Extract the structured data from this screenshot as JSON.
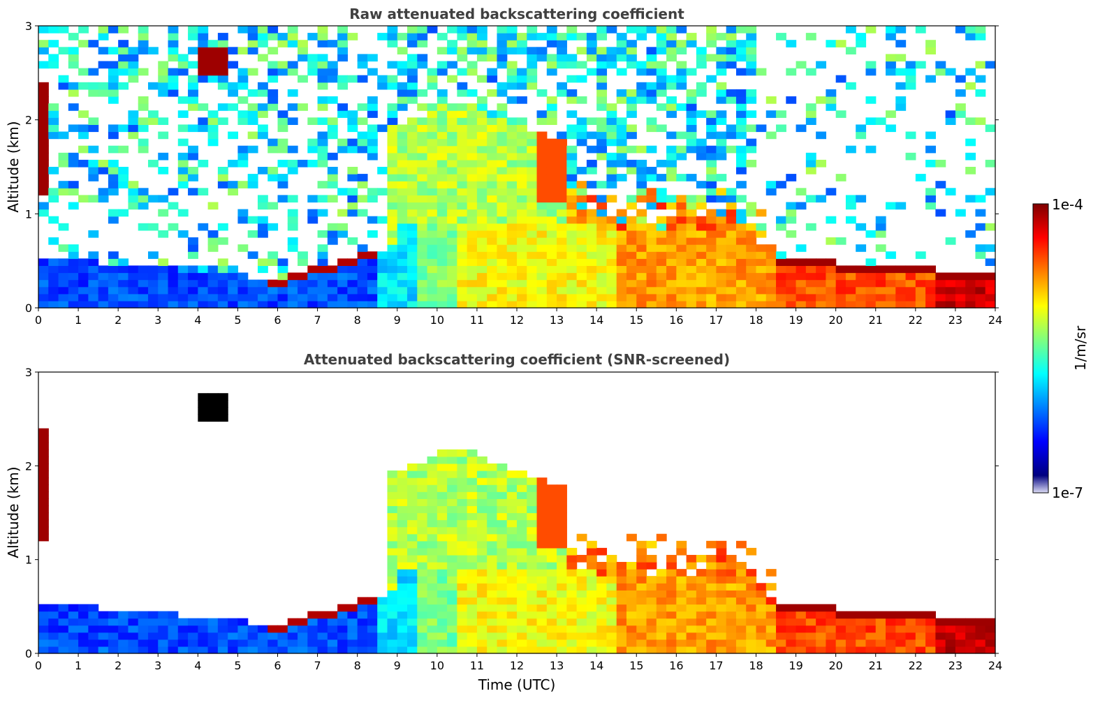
{
  "colors": {
    "jet": [
      "#00007f",
      "#0000ff",
      "#007fff",
      "#00ffff",
      "#7fff7f",
      "#ffff00",
      "#ff7f00",
      "#ff0000",
      "#7f0000"
    ],
    "low_end": "#dcdcf5",
    "background": "#ffffff"
  },
  "chart_data": [
    {
      "type": "heatmap",
      "title": "Raw attenuated backscattering coefficient",
      "xlabel": "",
      "ylabel": "Altitude (km)",
      "xlim": [
        0,
        24
      ],
      "ylim": [
        0,
        3
      ],
      "xticks": [
        0,
        1,
        2,
        3,
        4,
        5,
        6,
        7,
        8,
        9,
        10,
        11,
        12,
        13,
        14,
        15,
        16,
        17,
        18,
        19,
        20,
        21,
        22,
        23,
        24
      ],
      "yticks": [
        0,
        1,
        2,
        3
      ],
      "colorscale": "jet-log",
      "clim": [
        "1e-7",
        "1e-4"
      ],
      "screened": false
    },
    {
      "type": "heatmap",
      "title": "Attenuated backscattering coefficient (SNR-screened)",
      "xlabel": "Time (UTC)",
      "ylabel": "Altitude (km)",
      "xlim": [
        0,
        24
      ],
      "ylim": [
        0,
        3
      ],
      "xticks": [
        0,
        1,
        2,
        3,
        4,
        5,
        6,
        7,
        8,
        9,
        10,
        11,
        12,
        13,
        14,
        15,
        16,
        17,
        18,
        19,
        20,
        21,
        22,
        23,
        24
      ],
      "yticks": [
        0,
        1,
        2,
        3
      ],
      "colorscale": "jet-log",
      "clim": [
        "1e-7",
        "1e-4"
      ],
      "screened": true
    }
  ],
  "colorbar": {
    "label": "1/m/sr",
    "top_label": "1e-4",
    "bottom_label": "1e-7"
  }
}
